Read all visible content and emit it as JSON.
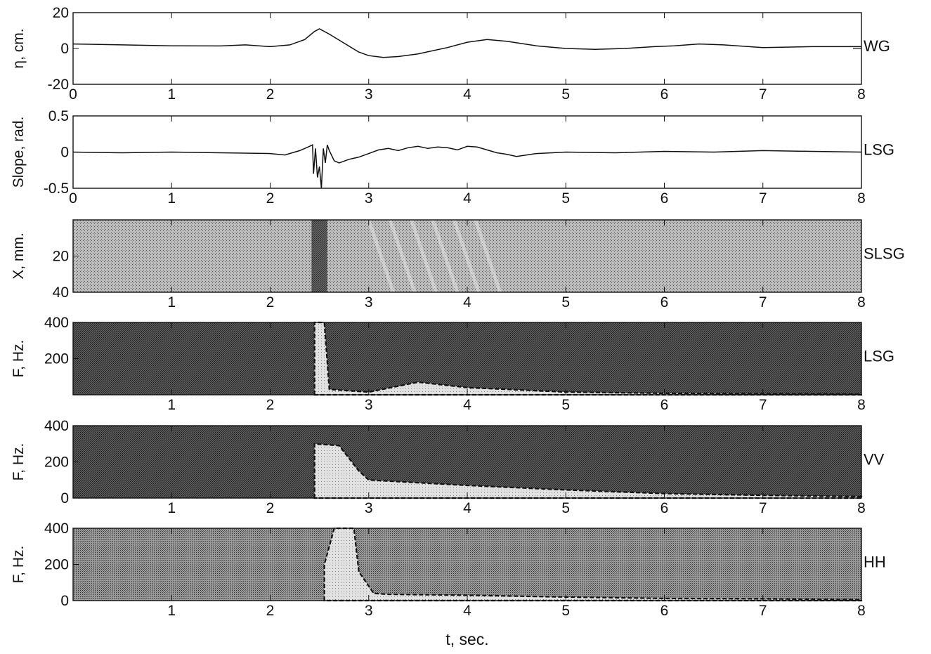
{
  "figure": {
    "xlabel": "t, sec."
  },
  "chart_data": [
    {
      "type": "line",
      "panel_label": "WG",
      "ylabel": "η, cm.",
      "xlim": [
        0,
        8
      ],
      "ylim": [
        -20,
        20
      ],
      "xticks": [
        "0",
        "1",
        "2",
        "3",
        "4",
        "5",
        "6",
        "7",
        "8"
      ],
      "yticks": [
        "20",
        "0",
        "-20"
      ],
      "x": [
        0,
        0.5,
        1.0,
        1.5,
        1.75,
        2.0,
        2.2,
        2.35,
        2.45,
        2.5,
        2.6,
        2.75,
        2.9,
        3.0,
        3.15,
        3.3,
        3.5,
        3.8,
        4.0,
        4.2,
        4.4,
        4.7,
        5.0,
        5.3,
        5.6,
        5.9,
        6.1,
        6.35,
        6.6,
        7.0,
        7.5,
        8.0
      ],
      "y": [
        2.5,
        2.0,
        1.5,
        1.4,
        2.0,
        1.0,
        2.0,
        5.0,
        9.5,
        11.0,
        8.0,
        3.0,
        -2.0,
        -4.0,
        -5.0,
        -4.5,
        -3.0,
        0.5,
        3.5,
        5.0,
        4.0,
        1.5,
        0.0,
        -0.5,
        0.0,
        1.0,
        1.5,
        2.5,
        2.0,
        0.5,
        1.0,
        1.0
      ]
    },
    {
      "type": "line",
      "panel_label": "LSG",
      "ylabel": "Slope, rad.",
      "xlim": [
        0,
        8
      ],
      "ylim": [
        -0.5,
        0.5
      ],
      "xticks": [
        "0",
        "1",
        "2",
        "3",
        "4",
        "5",
        "6",
        "7",
        "8"
      ],
      "yticks": [
        "0.5",
        "0",
        "-0.5"
      ],
      "x": [
        0,
        0.5,
        1.0,
        1.5,
        2.0,
        2.15,
        2.3,
        2.4,
        2.43,
        2.44,
        2.46,
        2.48,
        2.5,
        2.52,
        2.54,
        2.56,
        2.58,
        2.6,
        2.65,
        2.7,
        2.8,
        2.9,
        3.0,
        3.1,
        3.2,
        3.3,
        3.4,
        3.5,
        3.6,
        3.7,
        3.8,
        3.9,
        4.0,
        4.1,
        4.2,
        4.3,
        4.4,
        4.5,
        4.7,
        5.0,
        5.5,
        6.0,
        6.5,
        7.0,
        7.5,
        8.0
      ],
      "y": [
        0,
        -0.01,
        0,
        -0.01,
        -0.02,
        -0.04,
        0.02,
        0.08,
        0.1,
        -0.3,
        0.05,
        -0.35,
        -0.2,
        -0.5,
        0.05,
        -0.15,
        0.1,
        0.02,
        -0.12,
        -0.15,
        -0.1,
        -0.07,
        -0.02,
        0.03,
        0.05,
        0.02,
        0.06,
        0.08,
        0.05,
        0.07,
        0.06,
        0.03,
        0.08,
        0.07,
        0.03,
        -0.01,
        -0.03,
        -0.06,
        -0.02,
        0.0,
        -0.01,
        0.01,
        0.0,
        0.02,
        0.01,
        0.0
      ]
    },
    {
      "type": "heatmap",
      "panel_label": "SLSG",
      "ylabel": "X, mm.",
      "xlim": [
        0,
        8
      ],
      "ylim": [
        40,
        0
      ],
      "xticks": [
        "1",
        "2",
        "3",
        "4",
        "5",
        "6",
        "7",
        "8"
      ],
      "yticks": [
        "20",
        "40"
      ],
      "note_values": {
        "dark_band_t": [
          2.42,
          2.58
        ],
        "light_streaks_t": [
          3.0,
          4.3
        ]
      }
    },
    {
      "type": "heatmap",
      "panel_label": "LSG",
      "ylabel": "F, Hz.",
      "xlim": [
        0,
        8
      ],
      "ylim": [
        0,
        400
      ],
      "xticks": [
        "1",
        "2",
        "3",
        "4",
        "5",
        "6",
        "7",
        "8"
      ],
      "yticks": [
        "400",
        "200"
      ],
      "region": {
        "t": [
          2.45,
          2.45,
          2.55,
          2.6,
          3.0,
          3.5,
          4.0,
          5.0,
          6.0,
          7.0,
          8.0
        ],
        "f": [
          0,
          400,
          400,
          30,
          15,
          70,
          40,
          15,
          8,
          5,
          3
        ]
      }
    },
    {
      "type": "heatmap",
      "panel_label": "VV",
      "ylabel": "F, Hz.",
      "xlim": [
        0,
        8
      ],
      "ylim": [
        0,
        400
      ],
      "xticks": [
        "1",
        "2",
        "3",
        "4",
        "5",
        "6",
        "7",
        "8"
      ],
      "yticks": [
        "400",
        "200",
        "0"
      ],
      "region": {
        "t": [
          2.45,
          2.45,
          2.7,
          2.9,
          3.0,
          4.0,
          5.0,
          6.0,
          7.0,
          8.0
        ],
        "f": [
          0,
          300,
          290,
          150,
          100,
          70,
          45,
          25,
          15,
          8
        ]
      }
    },
    {
      "type": "heatmap",
      "panel_label": "HH",
      "ylabel": "F, Hz.",
      "xlim": [
        0,
        8
      ],
      "ylim": [
        0,
        400
      ],
      "xticks": [
        "1",
        "2",
        "3",
        "4",
        "5",
        "6",
        "7",
        "8"
      ],
      "yticks": [
        "400",
        "200",
        "0"
      ],
      "region": {
        "t": [
          2.55,
          2.55,
          2.65,
          2.85,
          2.9,
          3.05,
          3.2,
          4.0,
          5.0,
          6.0,
          7.0,
          8.0
        ],
        "f": [
          0,
          200,
          400,
          400,
          160,
          40,
          35,
          30,
          20,
          12,
          10,
          5
        ]
      }
    }
  ]
}
